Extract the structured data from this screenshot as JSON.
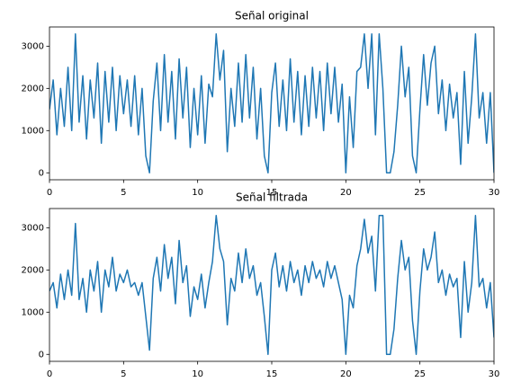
{
  "chart_data": [
    {
      "type": "line",
      "title": "Señal original",
      "color": "#1f77b4",
      "grid": false,
      "xlim": [
        0,
        30
      ],
      "xticks": [
        0,
        5,
        10,
        15,
        20,
        25,
        30
      ],
      "ylim": [
        -165,
        3455
      ],
      "yticks": [
        0,
        1000,
        2000,
        3000
      ],
      "x": [
        0,
        0.25,
        0.5,
        0.75,
        1,
        1.25,
        1.5,
        1.75,
        2,
        2.25,
        2.5,
        2.75,
        3,
        3.25,
        3.5,
        3.75,
        4,
        4.25,
        4.5,
        4.75,
        5,
        5.25,
        5.5,
        5.75,
        6,
        6.25,
        6.5,
        6.75,
        7,
        7.25,
        7.5,
        7.75,
        8,
        8.25,
        8.5,
        8.75,
        9,
        9.25,
        9.5,
        9.75,
        10,
        10.25,
        10.5,
        10.75,
        11,
        11.25,
        11.5,
        11.75,
        12,
        12.25,
        12.5,
        12.75,
        13,
        13.25,
        13.5,
        13.75,
        14,
        14.25,
        14.5,
        14.75,
        15,
        15.25,
        15.5,
        15.75,
        16,
        16.25,
        16.5,
        16.75,
        17,
        17.25,
        17.5,
        17.75,
        18,
        18.25,
        18.5,
        18.75,
        19,
        19.25,
        19.5,
        19.75,
        20,
        20.25,
        20.5,
        20.75,
        21,
        21.25,
        21.5,
        21.75,
        22,
        22.25,
        22.5,
        22.75,
        23,
        23.25,
        23.5,
        23.75,
        24,
        24.25,
        24.5,
        24.75,
        25,
        25.25,
        25.5,
        25.75,
        26,
        26.25,
        26.5,
        26.75,
        27,
        27.25,
        27.5,
        27.75,
        28,
        28.25,
        28.5,
        28.75,
        29,
        29.25,
        29.5,
        29.75,
        30
      ],
      "values": [
        1500,
        2200,
        900,
        2000,
        1100,
        2500,
        1000,
        3290,
        1200,
        2300,
        800,
        2200,
        1300,
        2600,
        700,
        2400,
        1200,
        2500,
        1000,
        2300,
        1400,
        2200,
        1100,
        2300,
        900,
        2000,
        400,
        0,
        1700,
        2600,
        1000,
        2800,
        1200,
        2400,
        800,
        2700,
        1300,
        2500,
        600,
        2000,
        900,
        2300,
        700,
        2100,
        1800,
        3290,
        2200,
        2900,
        500,
        2000,
        1100,
        2600,
        1200,
        2800,
        1300,
        2500,
        800,
        2000,
        400,
        0,
        1900,
        2600,
        1100,
        2200,
        1000,
        2700,
        1200,
        2400,
        900,
        2300,
        1100,
        2500,
        1300,
        2400,
        1000,
        2600,
        1400,
        2500,
        1200,
        2100,
        0,
        1800,
        600,
        2400,
        2500,
        3290,
        2000,
        3290,
        900,
        3290,
        2000,
        0,
        0,
        500,
        1600,
        3000,
        1800,
        2500,
        400,
        0,
        1500,
        2800,
        1600,
        2600,
        3000,
        1400,
        2200,
        1000,
        2100,
        1300,
        1900,
        200,
        2400,
        700,
        1800,
        3290,
        1300,
        1900,
        700,
        1900,
        0
      ]
    },
    {
      "type": "line",
      "title": "Señal filtrada",
      "color": "#1f77b4",
      "grid": false,
      "xlim": [
        0,
        30
      ],
      "xticks": [
        0,
        5,
        10,
        15,
        20,
        25,
        30
      ],
      "ylim": [
        -165,
        3455
      ],
      "yticks": [
        0,
        1000,
        2000,
        3000
      ],
      "x": [
        0,
        0.25,
        0.5,
        0.75,
        1,
        1.25,
        1.5,
        1.75,
        2,
        2.25,
        2.5,
        2.75,
        3,
        3.25,
        3.5,
        3.75,
        4,
        4.25,
        4.5,
        4.75,
        5,
        5.25,
        5.5,
        5.75,
        6,
        6.25,
        6.5,
        6.75,
        7,
        7.25,
        7.5,
        7.75,
        8,
        8.25,
        8.5,
        8.75,
        9,
        9.25,
        9.5,
        9.75,
        10,
        10.25,
        10.5,
        10.75,
        11,
        11.25,
        11.5,
        11.75,
        12,
        12.25,
        12.5,
        12.75,
        13,
        13.25,
        13.5,
        13.75,
        14,
        14.25,
        14.5,
        14.75,
        15,
        15.25,
        15.5,
        15.75,
        16,
        16.25,
        16.5,
        16.75,
        17,
        17.25,
        17.5,
        17.75,
        18,
        18.25,
        18.5,
        18.75,
        19,
        19.25,
        19.5,
        19.75,
        20,
        20.25,
        20.5,
        20.75,
        21,
        21.25,
        21.5,
        21.75,
        22,
        22.25,
        22.5,
        22.75,
        23,
        23.25,
        23.5,
        23.75,
        24,
        24.25,
        24.5,
        24.75,
        25,
        25.25,
        25.5,
        25.75,
        26,
        26.25,
        26.5,
        26.75,
        27,
        27.25,
        27.5,
        27.75,
        28,
        28.25,
        28.5,
        28.75,
        29,
        29.25,
        29.5,
        29.75,
        30
      ],
      "values": [
        1500,
        1700,
        1100,
        1900,
        1300,
        2000,
        1400,
        3100,
        1300,
        1800,
        1000,
        2000,
        1500,
        2200,
        1000,
        2000,
        1600,
        2300,
        1500,
        1900,
        1700,
        2000,
        1600,
        1700,
        1400,
        1700,
        900,
        100,
        1800,
        2300,
        1500,
        2600,
        1800,
        2300,
        1200,
        2700,
        1700,
        2100,
        900,
        1600,
        1300,
        1900,
        1100,
        1700,
        2200,
        3290,
        2500,
        2200,
        700,
        1800,
        1500,
        2400,
        1700,
        2500,
        1800,
        2100,
        1400,
        1700,
        900,
        0,
        2000,
        2400,
        1600,
        2100,
        1500,
        2200,
        1700,
        2000,
        1400,
        2100,
        1700,
        2200,
        1800,
        2000,
        1600,
        2200,
        1800,
        2100,
        1700,
        1300,
        0,
        1400,
        1100,
        2100,
        2500,
        3200,
        2400,
        2800,
        1500,
        3290,
        3290,
        0,
        0,
        600,
        1800,
        2700,
        2000,
        2300,
        800,
        0,
        1500,
        2500,
        2000,
        2300,
        2900,
        1700,
        2000,
        1400,
        1900,
        1600,
        1800,
        400,
        2200,
        1000,
        1700,
        3290,
        1600,
        1800,
        1100,
        1700,
        400
      ]
    }
  ]
}
